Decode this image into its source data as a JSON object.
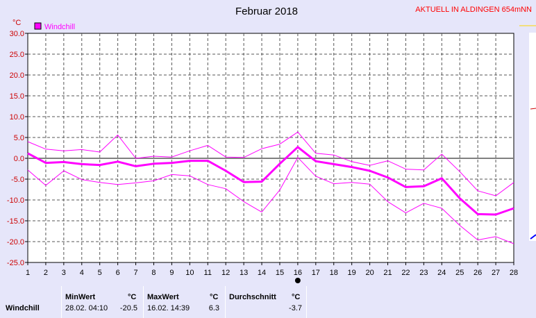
{
  "header": {
    "title": "Februar 2018",
    "station": "AKTUELL IN ALDINGEN 654mNN"
  },
  "colors": {
    "background": "#e6e6fa",
    "plot_background": "#ffffff",
    "series": "#ff00ff",
    "axis_text": "#cc0000",
    "station_text": "#ff0000",
    "zero_line": "#808080"
  },
  "chart_data": {
    "type": "line",
    "title": "Februar 2018",
    "ylabel": "°C",
    "ylim": [
      -25,
      30
    ],
    "ytick_step": 5,
    "y_ticks": [
      "30.0",
      "25.0",
      "20.0",
      "15.0",
      "10.0",
      "5.0",
      "0.0",
      "-5.0",
      "-10.0",
      "-15.0",
      "-20.0",
      "-25.0"
    ],
    "xlim": [
      1,
      28
    ],
    "x": [
      1,
      2,
      3,
      4,
      5,
      6,
      7,
      8,
      9,
      10,
      11,
      12,
      13,
      14,
      15,
      16,
      17,
      18,
      19,
      20,
      21,
      22,
      23,
      24,
      25,
      26,
      27,
      28
    ],
    "grid": true,
    "legend": "top-left",
    "legend_label": "Windchill",
    "series": [
      {
        "name": "Windchill",
        "role": "max",
        "values": [
          4.0,
          2.2,
          1.8,
          2.1,
          1.5,
          5.6,
          0.0,
          0.5,
          0.3,
          1.8,
          3.1,
          0.3,
          0.2,
          2.3,
          3.4,
          6.3,
          1.2,
          0.8,
          -0.8,
          -1.7,
          -0.6,
          -2.6,
          -2.8,
          1.0,
          -3.2,
          -7.8,
          -9.0,
          -5.8
        ]
      },
      {
        "name": "Windchill",
        "role": "mean",
        "values": [
          1.2,
          -1.1,
          -0.9,
          -1.4,
          -1.6,
          -0.8,
          -1.9,
          -1.3,
          -1.1,
          -0.6,
          -0.6,
          -3.0,
          -5.7,
          -5.6,
          -1.3,
          2.7,
          -0.7,
          -1.4,
          -2.1,
          -3.0,
          -4.6,
          -6.9,
          -6.7,
          -4.8,
          -9.6,
          -13.4,
          -13.5,
          -12.0
        ]
      },
      {
        "name": "Windchill",
        "role": "min",
        "values": [
          -2.8,
          -6.5,
          -3.0,
          -5.1,
          -5.8,
          -6.3,
          -5.9,
          -5.4,
          -3.9,
          -4.2,
          -6.3,
          -7.3,
          -10.4,
          -12.9,
          -7.6,
          0.2,
          -4.3,
          -6.1,
          -5.8,
          -6.2,
          -10.4,
          -13.1,
          -10.8,
          -12.0,
          -16.1,
          -19.6,
          -18.8,
          -20.5
        ]
      }
    ],
    "marker_day": 16
  },
  "stats": {
    "row_label": "Windchill",
    "min_header": "MinWert",
    "max_header": "MaxWert",
    "avg_header": "Durchschnitt",
    "unit": "°C",
    "min_time": "28.02.  04:10",
    "min_value": "-20.5",
    "max_time": "16.02.  14:39",
    "max_value": "6.3",
    "avg_value": "-3.7"
  }
}
